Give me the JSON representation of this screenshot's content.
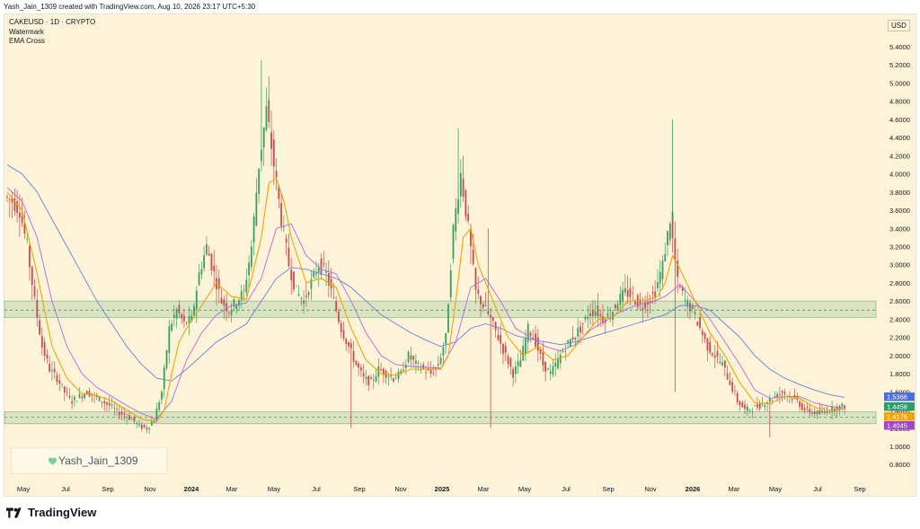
{
  "caption": "Yash_Jain_1309 created with TradingView.com, Aug 10, 2026 23:17 UTC+5:30",
  "legend": {
    "symbol": "CAKEUSD · 1D · CRYPTO",
    "indicator1": "Watermark",
    "indicator2": "EMA Cross"
  },
  "watermark": "Yash_Jain_1309",
  "logo_text": "TradingView",
  "colors": {
    "background": "#fdf3d9",
    "ema_fast": "#f0a500",
    "ema_slow": "#b76ad6",
    "ema_long": "#6b7fd7",
    "candle_up": "#3a9e5f",
    "candle_down": "#c0504d",
    "zone": "#9bc79b"
  },
  "chart_data": {
    "type": "candlestick",
    "currency_label": "USD",
    "y_ticks": [
      "5.4000",
      "5.2000",
      "5.0000",
      "4.8000",
      "4.6000",
      "4.4000",
      "4.2000",
      "4.0000",
      "3.8000",
      "3.6000",
      "3.4000",
      "3.2000",
      "3.0000",
      "2.8000",
      "2.6000",
      "2.4000",
      "2.2000",
      "2.0000",
      "1.8000",
      "1.6000",
      "1.4000",
      "1.2000",
      "1.0000",
      "0.8000"
    ],
    "ylim": [
      0.7,
      5.6
    ],
    "x_ticks": [
      {
        "label": "May",
        "bold": false
      },
      {
        "label": "Jul",
        "bold": false
      },
      {
        "label": "Sep",
        "bold": false
      },
      {
        "label": "Nov",
        "bold": false
      },
      {
        "label": "2024",
        "bold": true
      },
      {
        "label": "Mar",
        "bold": false
      },
      {
        "label": "May",
        "bold": false
      },
      {
        "label": "Jul",
        "bold": false
      },
      {
        "label": "Sep",
        "bold": false
      },
      {
        "label": "Nov",
        "bold": false
      },
      {
        "label": "2025",
        "bold": true
      },
      {
        "label": "Mar",
        "bold": false
      },
      {
        "label": "May",
        "bold": false
      },
      {
        "label": "Jul",
        "bold": false
      },
      {
        "label": "Sep",
        "bold": false
      },
      {
        "label": "Nov",
        "bold": false
      },
      {
        "label": "2026",
        "bold": true
      },
      {
        "label": "Mar",
        "bold": false
      },
      {
        "label": "May",
        "bold": false
      },
      {
        "label": "Jul",
        "bold": false
      },
      {
        "label": "Sep",
        "bold": false
      }
    ],
    "zones": [
      {
        "low": 2.42,
        "high": 2.6,
        "mid": 2.5
      },
      {
        "low": 1.25,
        "high": 1.38,
        "mid": 1.32
      }
    ],
    "price_badges": [
      {
        "value": "1.5366",
        "color": "#4a6fdc"
      },
      {
        "value": "1.4458",
        "color": "#2e9b6a"
      },
      {
        "value": "1.4176",
        "color": "#f0a500"
      },
      {
        "value": "1.4045",
        "color": "#a344c9"
      }
    ],
    "price_path": [
      [
        0,
        3.75
      ],
      [
        3,
        3.7
      ],
      [
        6,
        3.6
      ],
      [
        9,
        3.2
      ],
      [
        12,
        2.6
      ],
      [
        15,
        2.1
      ],
      [
        18,
        1.85
      ],
      [
        21,
        1.75
      ],
      [
        24,
        1.6
      ],
      [
        27,
        1.5
      ],
      [
        30,
        1.55
      ],
      [
        33,
        1.6
      ],
      [
        36,
        1.55
      ],
      [
        39,
        1.5
      ],
      [
        42,
        1.45
      ],
      [
        45,
        1.38
      ],
      [
        48,
        1.35
      ],
      [
        51,
        1.3
      ],
      [
        54,
        1.22
      ],
      [
        57,
        1.2
      ],
      [
        60,
        1.3
      ],
      [
        63,
        1.6
      ],
      [
        66,
        2.3
      ],
      [
        69,
        2.5
      ],
      [
        72,
        2.35
      ],
      [
        75,
        2.4
      ],
      [
        78,
        2.9
      ],
      [
        81,
        3.2
      ],
      [
        84,
        2.9
      ],
      [
        87,
        2.6
      ],
      [
        90,
        2.5
      ],
      [
        93,
        2.6
      ],
      [
        96,
        2.7
      ],
      [
        99,
        3.2
      ],
      [
        102,
        4.1
      ],
      [
        105,
        4.7
      ],
      [
        108,
        4.1
      ],
      [
        111,
        3.5
      ],
      [
        114,
        3.0
      ],
      [
        117,
        2.7
      ],
      [
        120,
        2.6
      ],
      [
        123,
        2.8
      ],
      [
        126,
        3.0
      ],
      [
        129,
        2.9
      ],
      [
        132,
        2.6
      ],
      [
        135,
        2.3
      ],
      [
        138,
        2.1
      ],
      [
        141,
        1.9
      ],
      [
        144,
        1.75
      ],
      [
        147,
        1.7
      ],
      [
        150,
        1.85
      ],
      [
        153,
        1.8
      ],
      [
        156,
        1.75
      ],
      [
        159,
        1.8
      ],
      [
        162,
        2.0
      ],
      [
        165,
        1.9
      ],
      [
        168,
        1.85
      ],
      [
        171,
        1.8
      ],
      [
        174,
        1.9
      ],
      [
        177,
        2.2
      ],
      [
        180,
        3.4
      ],
      [
        183,
        4.0
      ],
      [
        186,
        3.4
      ],
      [
        189,
        2.7
      ],
      [
        192,
        2.55
      ],
      [
        195,
        2.4
      ],
      [
        198,
        2.2
      ],
      [
        201,
        2.0
      ],
      [
        204,
        1.8
      ],
      [
        207,
        1.95
      ],
      [
        210,
        2.3
      ],
      [
        213,
        2.15
      ],
      [
        216,
        1.9
      ],
      [
        219,
        1.8
      ],
      [
        222,
        1.95
      ],
      [
        225,
        2.1
      ],
      [
        228,
        2.2
      ],
      [
        231,
        2.3
      ],
      [
        234,
        2.45
      ],
      [
        237,
        2.5
      ],
      [
        240,
        2.4
      ],
      [
        243,
        2.45
      ],
      [
        246,
        2.6
      ],
      [
        249,
        2.7
      ],
      [
        252,
        2.65
      ],
      [
        255,
        2.55
      ],
      [
        258,
        2.6
      ],
      [
        261,
        2.7
      ],
      [
        264,
        3.0
      ],
      [
        267,
        3.5
      ],
      [
        270,
        2.8
      ],
      [
        273,
        2.6
      ],
      [
        276,
        2.5
      ],
      [
        279,
        2.3
      ],
      [
        282,
        2.1
      ],
      [
        285,
        2.0
      ],
      [
        288,
        1.9
      ],
      [
        291,
        1.7
      ],
      [
        294,
        1.5
      ],
      [
        297,
        1.4
      ],
      [
        300,
        1.42
      ],
      [
        303,
        1.45
      ],
      [
        306,
        1.5
      ],
      [
        309,
        1.55
      ],
      [
        312,
        1.6
      ],
      [
        315,
        1.55
      ],
      [
        318,
        1.5
      ],
      [
        321,
        1.4
      ],
      [
        324,
        1.38
      ],
      [
        327,
        1.36
      ],
      [
        330,
        1.4
      ],
      [
        333,
        1.42
      ],
      [
        336,
        1.44
      ]
    ],
    "ema_fast_path": [
      [
        0,
        3.8
      ],
      [
        6,
        3.6
      ],
      [
        12,
        2.9
      ],
      [
        18,
        2.1
      ],
      [
        24,
        1.75
      ],
      [
        30,
        1.58
      ],
      [
        36,
        1.56
      ],
      [
        42,
        1.5
      ],
      [
        48,
        1.4
      ],
      [
        54,
        1.3
      ],
      [
        60,
        1.27
      ],
      [
        63,
        1.4
      ],
      [
        66,
        1.8
      ],
      [
        69,
        2.15
      ],
      [
        72,
        2.3
      ],
      [
        78,
        2.55
      ],
      [
        84,
        2.8
      ],
      [
        90,
        2.65
      ],
      [
        96,
        2.62
      ],
      [
        102,
        3.3
      ],
      [
        105,
        3.9
      ],
      [
        108,
        3.95
      ],
      [
        111,
        3.7
      ],
      [
        114,
        3.3
      ],
      [
        120,
        2.8
      ],
      [
        126,
        2.85
      ],
      [
        132,
        2.75
      ],
      [
        138,
        2.3
      ],
      [
        144,
        1.95
      ],
      [
        150,
        1.8
      ],
      [
        156,
        1.78
      ],
      [
        162,
        1.85
      ],
      [
        168,
        1.85
      ],
      [
        174,
        1.85
      ],
      [
        177,
        2.0
      ],
      [
        180,
        2.6
      ],
      [
        183,
        3.3
      ],
      [
        186,
        3.4
      ],
      [
        189,
        3.0
      ],
      [
        195,
        2.6
      ],
      [
        201,
        2.2
      ],
      [
        207,
        2.0
      ],
      [
        213,
        2.1
      ],
      [
        219,
        1.95
      ],
      [
        225,
        2.0
      ],
      [
        231,
        2.2
      ],
      [
        237,
        2.4
      ],
      [
        243,
        2.42
      ],
      [
        249,
        2.6
      ],
      [
        255,
        2.6
      ],
      [
        261,
        2.65
      ],
      [
        264,
        2.8
      ],
      [
        267,
        3.1
      ],
      [
        270,
        2.95
      ],
      [
        276,
        2.6
      ],
      [
        282,
        2.25
      ],
      [
        288,
        2.0
      ],
      [
        294,
        1.7
      ],
      [
        300,
        1.48
      ],
      [
        306,
        1.47
      ],
      [
        312,
        1.55
      ],
      [
        318,
        1.53
      ],
      [
        324,
        1.43
      ],
      [
        330,
        1.4
      ],
      [
        336,
        1.42
      ]
    ],
    "ema_slow_path": [
      [
        0,
        3.85
      ],
      [
        6,
        3.7
      ],
      [
        12,
        3.3
      ],
      [
        18,
        2.6
      ],
      [
        24,
        2.1
      ],
      [
        30,
        1.8
      ],
      [
        36,
        1.65
      ],
      [
        42,
        1.55
      ],
      [
        48,
        1.45
      ],
      [
        54,
        1.36
      ],
      [
        60,
        1.3
      ],
      [
        66,
        1.5
      ],
      [
        72,
        1.95
      ],
      [
        78,
        2.25
      ],
      [
        84,
        2.45
      ],
      [
        90,
        2.55
      ],
      [
        96,
        2.58
      ],
      [
        102,
        2.85
      ],
      [
        108,
        3.4
      ],
      [
        114,
        3.45
      ],
      [
        120,
        3.1
      ],
      [
        126,
        2.95
      ],
      [
        132,
        2.9
      ],
      [
        138,
        2.6
      ],
      [
        144,
        2.25
      ],
      [
        150,
        2.0
      ],
      [
        156,
        1.9
      ],
      [
        162,
        1.88
      ],
      [
        168,
        1.87
      ],
      [
        174,
        1.86
      ],
      [
        180,
        2.15
      ],
      [
        186,
        2.75
      ],
      [
        192,
        2.85
      ],
      [
        198,
        2.6
      ],
      [
        204,
        2.3
      ],
      [
        210,
        2.2
      ],
      [
        216,
        2.1
      ],
      [
        222,
        2.05
      ],
      [
        228,
        2.12
      ],
      [
        234,
        2.28
      ],
      [
        240,
        2.38
      ],
      [
        246,
        2.48
      ],
      [
        252,
        2.55
      ],
      [
        258,
        2.58
      ],
      [
        264,
        2.65
      ],
      [
        270,
        2.78
      ],
      [
        276,
        2.6
      ],
      [
        282,
        2.4
      ],
      [
        288,
        2.15
      ],
      [
        294,
        1.9
      ],
      [
        300,
        1.62
      ],
      [
        306,
        1.53
      ],
      [
        312,
        1.55
      ],
      [
        318,
        1.55
      ],
      [
        324,
        1.48
      ],
      [
        330,
        1.44
      ],
      [
        336,
        1.42
      ]
    ],
    "ema_long_path": [
      [
        0,
        4.1
      ],
      [
        6,
        4.0
      ],
      [
        12,
        3.8
      ],
      [
        18,
        3.5
      ],
      [
        24,
        3.2
      ],
      [
        30,
        2.9
      ],
      [
        36,
        2.6
      ],
      [
        42,
        2.35
      ],
      [
        48,
        2.1
      ],
      [
        54,
        1.9
      ],
      [
        60,
        1.75
      ],
      [
        66,
        1.72
      ],
      [
        72,
        1.85
      ],
      [
        78,
        2.0
      ],
      [
        84,
        2.15
      ],
      [
        90,
        2.25
      ],
      [
        96,
        2.35
      ],
      [
        102,
        2.6
      ],
      [
        108,
        2.85
      ],
      [
        114,
        2.97
      ],
      [
        120,
        2.95
      ],
      [
        126,
        2.9
      ],
      [
        132,
        2.85
      ],
      [
        138,
        2.75
      ],
      [
        144,
        2.6
      ],
      [
        150,
        2.45
      ],
      [
        156,
        2.35
      ],
      [
        162,
        2.25
      ],
      [
        168,
        2.17
      ],
      [
        174,
        2.1
      ],
      [
        180,
        2.15
      ],
      [
        186,
        2.3
      ],
      [
        192,
        2.35
      ],
      [
        198,
        2.3
      ],
      [
        204,
        2.22
      ],
      [
        210,
        2.18
      ],
      [
        216,
        2.15
      ],
      [
        222,
        2.12
      ],
      [
        228,
        2.15
      ],
      [
        234,
        2.2
      ],
      [
        240,
        2.25
      ],
      [
        246,
        2.3
      ],
      [
        252,
        2.35
      ],
      [
        258,
        2.4
      ],
      [
        264,
        2.45
      ],
      [
        270,
        2.55
      ],
      [
        276,
        2.55
      ],
      [
        282,
        2.5
      ],
      [
        288,
        2.35
      ],
      [
        294,
        2.2
      ],
      [
        300,
        2.0
      ],
      [
        306,
        1.85
      ],
      [
        312,
        1.75
      ],
      [
        318,
        1.68
      ],
      [
        324,
        1.62
      ],
      [
        330,
        1.57
      ],
      [
        336,
        1.54
      ]
    ]
  }
}
